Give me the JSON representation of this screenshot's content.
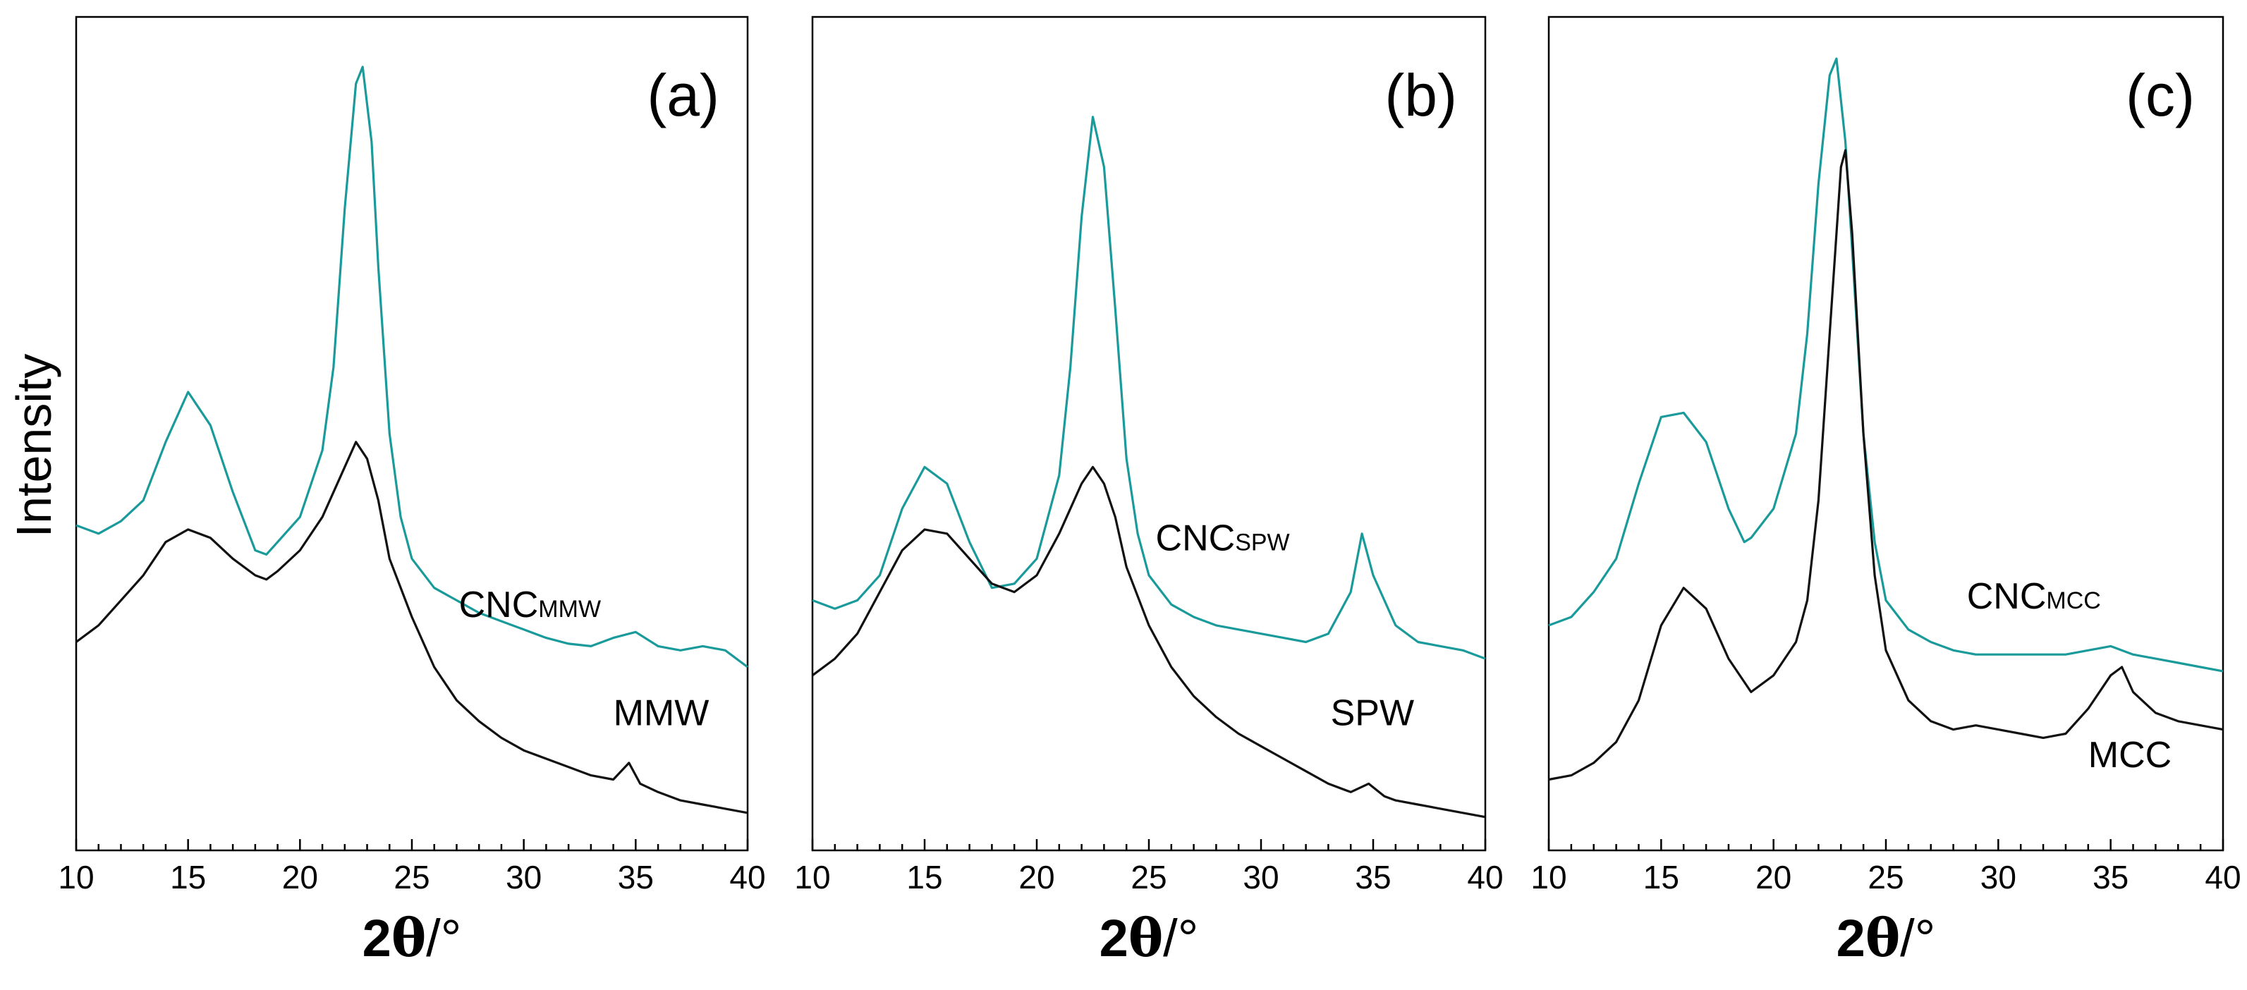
{
  "chart_data": {
    "type": "line",
    "ylabel": "Intensity",
    "xlabel_number": "2",
    "xlabel_symbol": "θ",
    "xlabel_unit": "/°",
    "xlim": [
      10,
      40
    ],
    "ylim": [
      0,
      100
    ],
    "xticks": [
      10,
      15,
      20,
      25,
      30,
      35,
      40
    ],
    "tick_labels": [
      "10",
      "15",
      "20",
      "25",
      "30",
      "35",
      "40"
    ],
    "colors": {
      "cnc": "#1a9a9a",
      "raw": "#111111",
      "axis": "#000000"
    },
    "panels": [
      {
        "label": "(a)",
        "series": [
          {
            "name": "CNC",
            "subscript": "MMW",
            "color_key": "cnc",
            "points": [
              [
                10,
                39
              ],
              [
                11,
                38
              ],
              [
                12,
                39.5
              ],
              [
                13,
                42
              ],
              [
                14,
                49
              ],
              [
                15,
                55
              ],
              [
                16,
                51
              ],
              [
                17,
                43
              ],
              [
                18,
                36
              ],
              [
                18.5,
                35.5
              ],
              [
                19,
                37
              ],
              [
                20,
                40
              ],
              [
                21,
                48
              ],
              [
                21.5,
                58
              ],
              [
                22,
                77
              ],
              [
                22.5,
                92
              ],
              [
                22.8,
                94
              ],
              [
                23.2,
                85
              ],
              [
                23.5,
                70
              ],
              [
                24,
                50
              ],
              [
                24.5,
                40
              ],
              [
                25,
                35
              ],
              [
                26,
                31.5
              ],
              [
                27,
                30
              ],
              [
                28,
                28.5
              ],
              [
                29,
                27.5
              ],
              [
                30,
                26.5
              ],
              [
                31,
                25.5
              ],
              [
                32,
                24.8
              ],
              [
                33,
                24.5
              ],
              [
                34,
                25.5
              ],
              [
                35,
                26.2
              ],
              [
                36,
                24.5
              ],
              [
                37,
                24
              ],
              [
                38,
                24.5
              ],
              [
                39,
                24
              ],
              [
                40,
                22
              ]
            ]
          },
          {
            "name": "MMW",
            "subscript": "",
            "color_key": "raw",
            "points": [
              [
                10,
                25
              ],
              [
                11,
                27
              ],
              [
                12,
                30
              ],
              [
                13,
                33
              ],
              [
                14,
                37
              ],
              [
                15,
                38.5
              ],
              [
                16,
                37.5
              ],
              [
                17,
                35
              ],
              [
                18,
                33
              ],
              [
                18.5,
                32.5
              ],
              [
                19,
                33.5
              ],
              [
                20,
                36
              ],
              [
                21,
                40
              ],
              [
                22,
                46
              ],
              [
                22.5,
                49
              ],
              [
                23,
                47
              ],
              [
                23.5,
                42
              ],
              [
                24,
                35
              ],
              [
                25,
                28
              ],
              [
                26,
                22
              ],
              [
                27,
                18
              ],
              [
                28,
                15.5
              ],
              [
                29,
                13.5
              ],
              [
                30,
                12
              ],
              [
                31,
                11
              ],
              [
                32,
                10
              ],
              [
                33,
                9
              ],
              [
                34,
                8.5
              ],
              [
                34.7,
                10.5
              ],
              [
                35.2,
                8
              ],
              [
                36,
                7
              ],
              [
                37,
                6
              ],
              [
                38,
                5.5
              ],
              [
                39,
                5
              ],
              [
                40,
                4.5
              ]
            ]
          }
        ]
      },
      {
        "label": "(b)",
        "series": [
          {
            "name": "CNC",
            "subscript": "SPW",
            "color_key": "cnc",
            "points": [
              [
                10,
                30
              ],
              [
                11,
                29
              ],
              [
                12,
                30
              ],
              [
                13,
                33
              ],
              [
                14,
                41
              ],
              [
                15,
                46
              ],
              [
                16,
                44
              ],
              [
                17,
                37
              ],
              [
                18,
                31.5
              ],
              [
                19,
                32
              ],
              [
                20,
                35
              ],
              [
                21,
                45
              ],
              [
                21.5,
                58
              ],
              [
                22,
                76
              ],
              [
                22.5,
                88
              ],
              [
                23,
                82
              ],
              [
                23.5,
                65
              ],
              [
                24,
                47
              ],
              [
                24.5,
                38
              ],
              [
                25,
                33
              ],
              [
                26,
                29.5
              ],
              [
                27,
                28
              ],
              [
                28,
                27
              ],
              [
                29,
                26.5
              ],
              [
                30,
                26
              ],
              [
                31,
                25.5
              ],
              [
                32,
                25
              ],
              [
                33,
                26
              ],
              [
                34,
                31
              ],
              [
                34.5,
                38
              ],
              [
                35,
                33
              ],
              [
                36,
                27
              ],
              [
                37,
                25
              ],
              [
                38,
                24.5
              ],
              [
                39,
                24
              ],
              [
                40,
                23
              ]
            ]
          },
          {
            "name": "SPW",
            "subscript": "",
            "color_key": "raw",
            "points": [
              [
                10,
                21
              ],
              [
                11,
                23
              ],
              [
                12,
                26
              ],
              [
                13,
                31
              ],
              [
                14,
                36
              ],
              [
                15,
                38.5
              ],
              [
                16,
                38
              ],
              [
                17,
                35
              ],
              [
                18,
                32
              ],
              [
                19,
                31
              ],
              [
                20,
                33
              ],
              [
                21,
                38
              ],
              [
                22,
                44
              ],
              [
                22.5,
                46
              ],
              [
                23,
                44
              ],
              [
                23.5,
                40
              ],
              [
                24,
                34
              ],
              [
                25,
                27
              ],
              [
                26,
                22
              ],
              [
                27,
                18.5
              ],
              [
                28,
                16
              ],
              [
                29,
                14
              ],
              [
                30,
                12.5
              ],
              [
                31,
                11
              ],
              [
                32,
                9.5
              ],
              [
                33,
                8
              ],
              [
                34,
                7
              ],
              [
                34.8,
                8
              ],
              [
                35.5,
                6.5
              ],
              [
                36,
                6
              ],
              [
                37,
                5.5
              ],
              [
                38,
                5
              ],
              [
                39,
                4.5
              ],
              [
                40,
                4
              ]
            ]
          }
        ]
      },
      {
        "label": "(c)",
        "series": [
          {
            "name": "CNC",
            "subscript": "MCC",
            "color_key": "cnc",
            "points": [
              [
                10,
                27
              ],
              [
                11,
                28
              ],
              [
                12,
                31
              ],
              [
                13,
                35
              ],
              [
                14,
                44
              ],
              [
                15,
                52
              ],
              [
                16,
                52.5
              ],
              [
                17,
                49
              ],
              [
                18,
                41
              ],
              [
                18.7,
                37
              ],
              [
                19,
                37.5
              ],
              [
                20,
                41
              ],
              [
                21,
                50
              ],
              [
                21.5,
                62
              ],
              [
                22,
                80
              ],
              [
                22.5,
                93
              ],
              [
                22.8,
                95
              ],
              [
                23.2,
                85
              ],
              [
                23.5,
                72
              ],
              [
                24,
                50
              ],
              [
                24.5,
                37
              ],
              [
                25,
                30
              ],
              [
                26,
                26.5
              ],
              [
                27,
                25
              ],
              [
                28,
                24
              ],
              [
                29,
                23.5
              ],
              [
                30,
                23.5
              ],
              [
                31,
                23.5
              ],
              [
                32,
                23.5
              ],
              [
                33,
                23.5
              ],
              [
                34,
                24
              ],
              [
                35,
                24.5
              ],
              [
                36,
                23.5
              ],
              [
                37,
                23
              ],
              [
                38,
                22.5
              ],
              [
                39,
                22
              ],
              [
                40,
                21.5
              ]
            ]
          },
          {
            "name": "MCC",
            "subscript": "",
            "color_key": "raw",
            "points": [
              [
                10,
                8.5
              ],
              [
                11,
                9
              ],
              [
                12,
                10.5
              ],
              [
                13,
                13
              ],
              [
                14,
                18
              ],
              [
                15,
                27
              ],
              [
                16,
                31.5
              ],
              [
                17,
                29
              ],
              [
                18,
                23
              ],
              [
                19,
                19
              ],
              [
                20,
                21
              ],
              [
                21,
                25
              ],
              [
                21.5,
                30
              ],
              [
                22,
                42
              ],
              [
                22.5,
                62
              ],
              [
                23,
                82
              ],
              [
                23.2,
                84
              ],
              [
                23.5,
                74
              ],
              [
                24,
                50
              ],
              [
                24.5,
                33
              ],
              [
                25,
                24
              ],
              [
                26,
                18
              ],
              [
                27,
                15.5
              ],
              [
                28,
                14.5
              ],
              [
                29,
                15
              ],
              [
                30,
                14.5
              ],
              [
                31,
                14
              ],
              [
                32,
                13.5
              ],
              [
                33,
                14
              ],
              [
                34,
                17
              ],
              [
                35,
                21
              ],
              [
                35.5,
                22
              ],
              [
                36,
                19
              ],
              [
                37,
                16.5
              ],
              [
                38,
                15.5
              ],
              [
                39,
                15
              ],
              [
                40,
                14.5
              ]
            ]
          }
        ]
      }
    ]
  }
}
